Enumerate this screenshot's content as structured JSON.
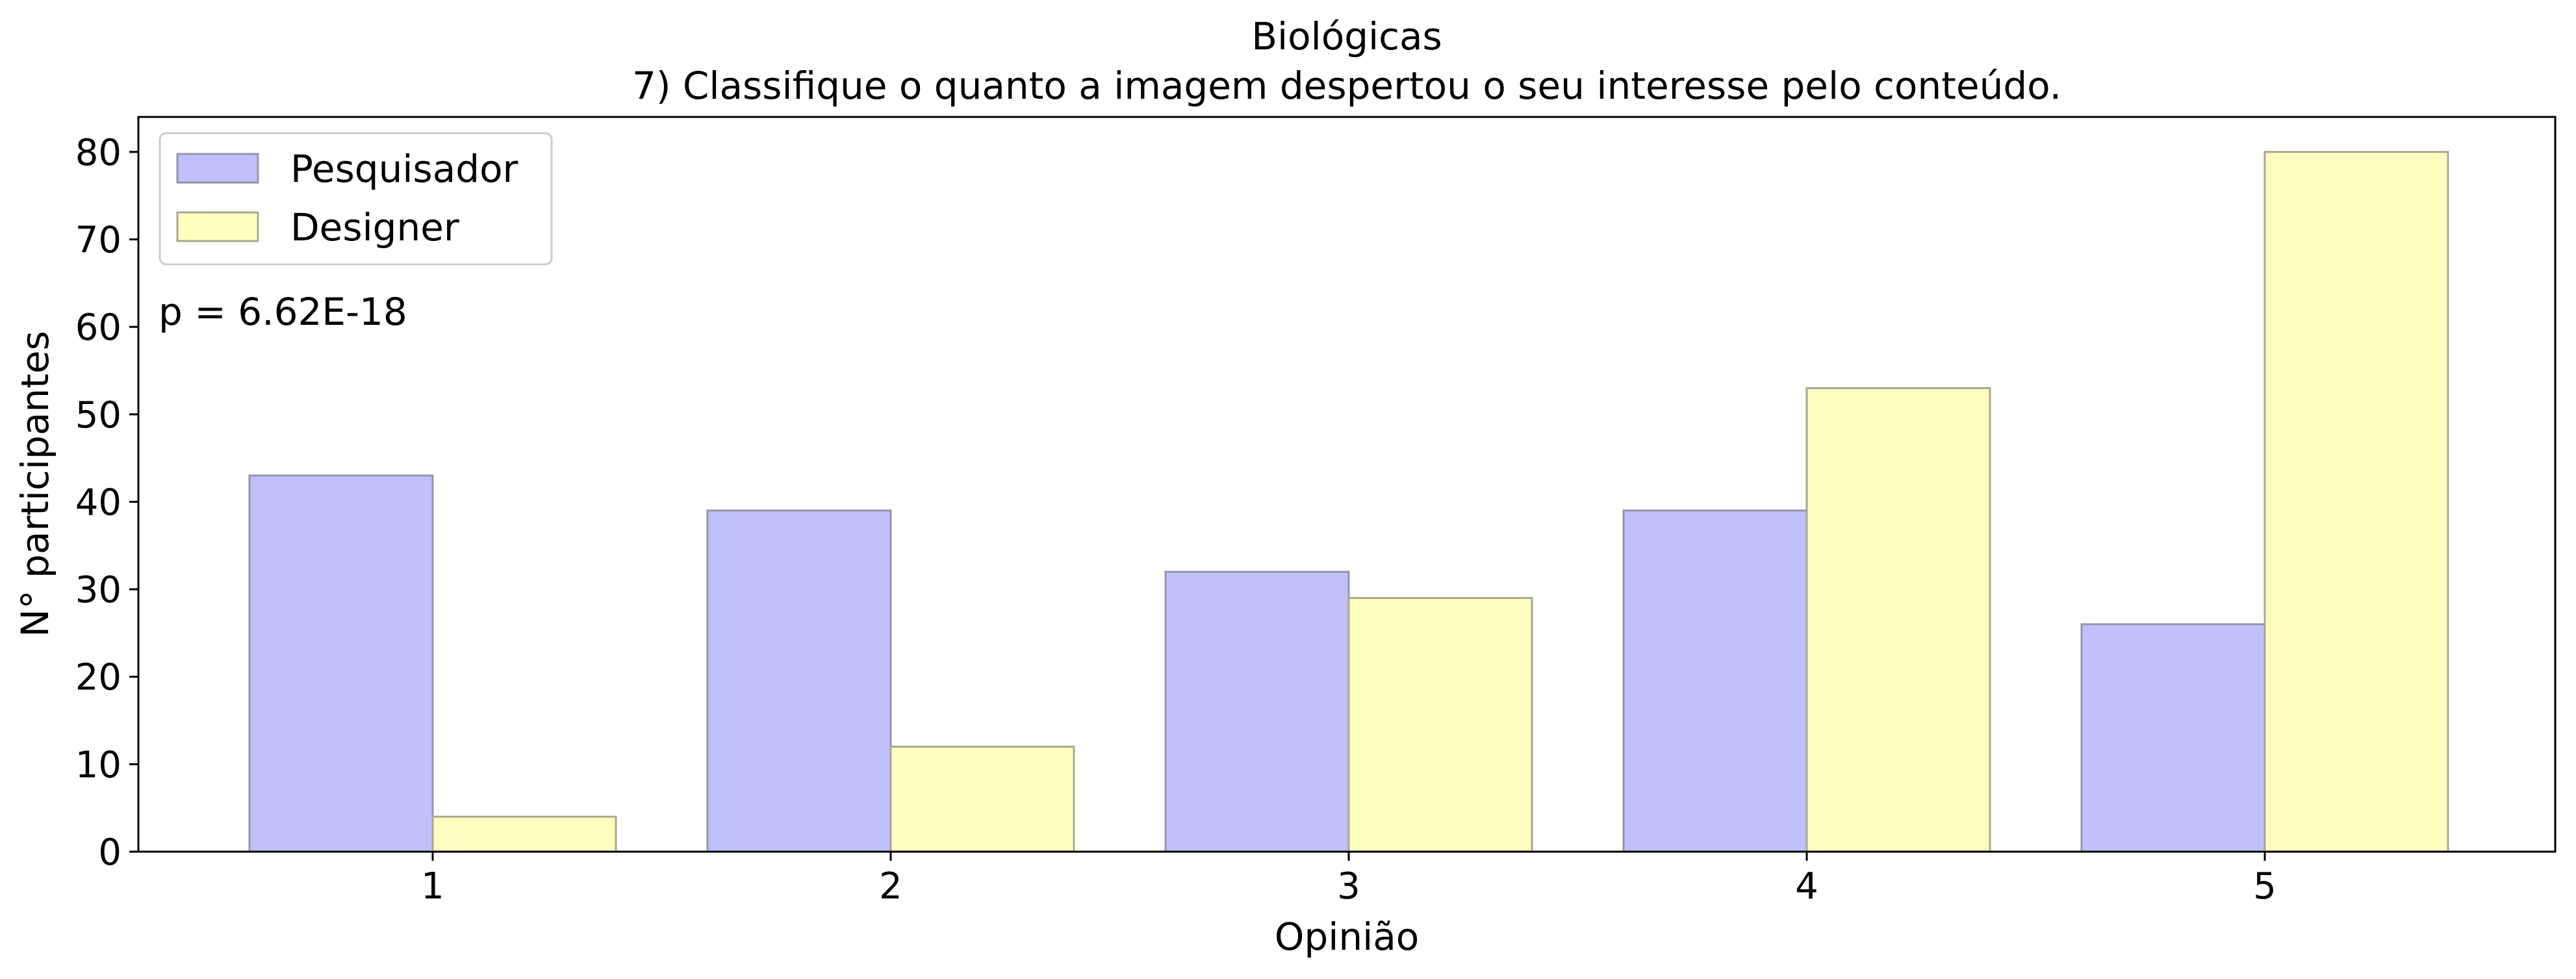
{
  "chart_data": {
    "type": "bar",
    "title": "Biológicas",
    "subtitle": "7) Classifique o quanto a imagem despertou o seu interesse pelo conteúdo.",
    "xlabel": "Opinião",
    "ylabel": "N° participantes",
    "categories": [
      "1",
      "2",
      "3",
      "4",
      "5"
    ],
    "series": [
      {
        "name": "Pesquisador",
        "values": [
          43,
          39,
          32,
          39,
          26
        ],
        "color": "#c0c0fc",
        "edge": "#9595aa"
      },
      {
        "name": "Designer",
        "values": [
          4,
          12,
          29,
          53,
          80
        ],
        "color": "#ffffc0",
        "edge": "#a8a890"
      }
    ],
    "ylim": [
      0,
      84
    ],
    "yticks": [
      0,
      10,
      20,
      30,
      40,
      50,
      60,
      70,
      80
    ],
    "grid": false,
    "legend_position": "top-left",
    "annotation": "p = 6.62E-18"
  }
}
